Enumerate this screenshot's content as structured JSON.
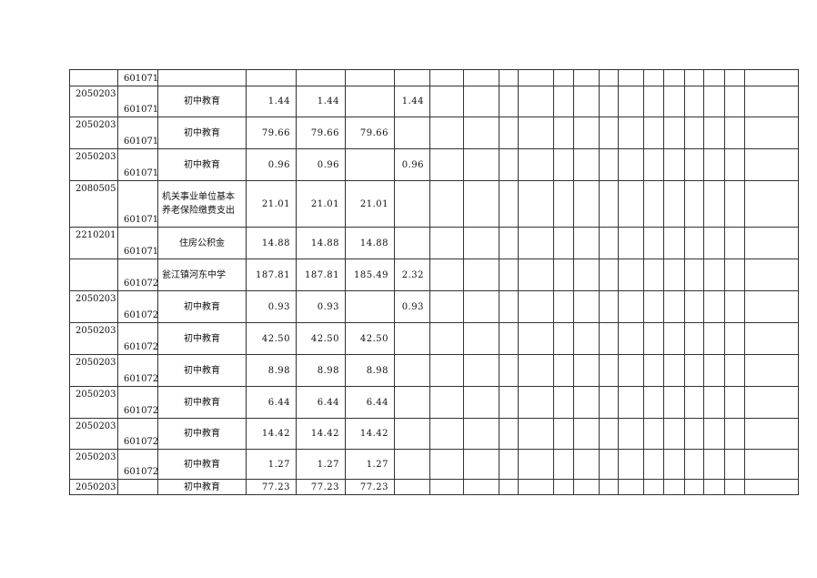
{
  "table": {
    "rows": [
      {
        "code": "",
        "unit": "601071",
        "name": "",
        "c1": "",
        "c2": "",
        "c3": "",
        "c4": ""
      },
      {
        "code": "2050203",
        "unit": "601071",
        "name": "初中教育",
        "c1": "1.44",
        "c2": "1.44",
        "c3": "",
        "c4": "1.44"
      },
      {
        "code": "2050203",
        "unit": "601071",
        "name": "初中教育",
        "c1": "79.66",
        "c2": "79.66",
        "c3": "79.66",
        "c4": ""
      },
      {
        "code": "2050203",
        "unit": "601071",
        "name": "初中教育",
        "c1": "0.96",
        "c2": "0.96",
        "c3": "",
        "c4": "0.96"
      },
      {
        "code": "2080505",
        "unit": "601071",
        "name": "机关事业单位基本养老保险缴费支出",
        "c1": "21.01",
        "c2": "21.01",
        "c3": "21.01",
        "c4": ""
      },
      {
        "code": "2210201",
        "unit": "601071",
        "name": "住房公积金",
        "c1": "14.88",
        "c2": "14.88",
        "c3": "14.88",
        "c4": ""
      },
      {
        "code": "",
        "unit": "601072",
        "name": "瓮江镇河东中学",
        "c1": "187.81",
        "c2": "187.81",
        "c3": "185.49",
        "c4": "2.32"
      },
      {
        "code": "2050203",
        "unit": "601072",
        "name": "初中教育",
        "c1": "0.93",
        "c2": "0.93",
        "c3": "",
        "c4": "0.93"
      },
      {
        "code": "2050203",
        "unit": "601072",
        "name": "初中教育",
        "c1": "42.50",
        "c2": "42.50",
        "c3": "42.50",
        "c4": ""
      },
      {
        "code": "2050203",
        "unit": "601072",
        "name": "初中教育",
        "c1": "8.98",
        "c2": "8.98",
        "c3": "8.98",
        "c4": ""
      },
      {
        "code": "2050203",
        "unit": "601072",
        "name": "初中教育",
        "c1": "6.44",
        "c2": "6.44",
        "c3": "6.44",
        "c4": ""
      },
      {
        "code": "2050203",
        "unit": "601072",
        "name": "初中教育",
        "c1": "14.42",
        "c2": "14.42",
        "c3": "14.42",
        "c4": ""
      },
      {
        "code": "2050203",
        "unit": "601072",
        "name": "初中教育",
        "c1": "1.27",
        "c2": "1.27",
        "c3": "1.27",
        "c4": ""
      },
      {
        "code": "2050203",
        "unit": "",
        "name": "初中教育",
        "c1": "77.23",
        "c2": "77.23",
        "c3": "77.23",
        "c4": ""
      }
    ]
  }
}
